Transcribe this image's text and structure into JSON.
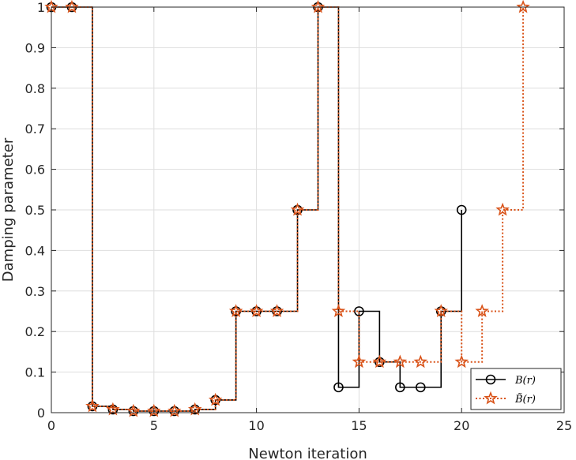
{
  "chart_data": {
    "type": "line",
    "title": "",
    "xlabel": "Newton iteration",
    "ylabel": "Damping parameter",
    "xlim": [
      0,
      25
    ],
    "ylim": [
      0,
      1
    ],
    "xticks": [
      0,
      5,
      10,
      15,
      20,
      25
    ],
    "yticks": [
      0,
      0.1,
      0.2,
      0.3,
      0.4,
      0.5,
      0.6,
      0.7,
      0.8,
      0.9,
      1
    ],
    "xtick_labels": [
      "0",
      "5",
      "10",
      "15",
      "20",
      "25"
    ],
    "ytick_labels": [
      "0",
      "0.1",
      "0.2",
      "0.3",
      "0.4",
      "0.5",
      "0.6",
      "0.7",
      "0.8",
      "0.9",
      "1"
    ],
    "grid": true,
    "step": "post",
    "legend_position": "bottom-right",
    "series": [
      {
        "name": "B(r)",
        "color": "#000000",
        "line_style": "solid",
        "marker": "circle",
        "x": [
          0,
          1,
          2,
          3,
          4,
          5,
          6,
          7,
          8,
          9,
          10,
          11,
          12,
          13,
          14,
          15,
          16,
          17,
          18,
          19,
          20
        ],
        "y": [
          1,
          1,
          0.015625,
          0.0078125,
          0.00390625,
          0.00390625,
          0.00390625,
          0.0078125,
          0.03125,
          0.25,
          0.25,
          0.25,
          0.5,
          1,
          0.0625,
          0.25,
          0.125,
          0.0625,
          0.0625,
          0.25,
          0.5
        ]
      },
      {
        "name": "B̃(r)",
        "color": "#D95319",
        "line_style": "dotted",
        "marker": "star",
        "x": [
          0,
          1,
          2,
          3,
          4,
          5,
          6,
          7,
          8,
          9,
          10,
          11,
          12,
          13,
          14,
          15,
          16,
          17,
          18,
          19,
          20,
          21,
          22,
          23
        ],
        "y": [
          1,
          1,
          0.015625,
          0.0078125,
          0.00390625,
          0.00390625,
          0.00390625,
          0.0078125,
          0.03125,
          0.25,
          0.25,
          0.25,
          0.5,
          1,
          0.25,
          0.125,
          0.125,
          0.125,
          0.125,
          0.25,
          0.125,
          0.25,
          0.5,
          1
        ]
      }
    ]
  }
}
